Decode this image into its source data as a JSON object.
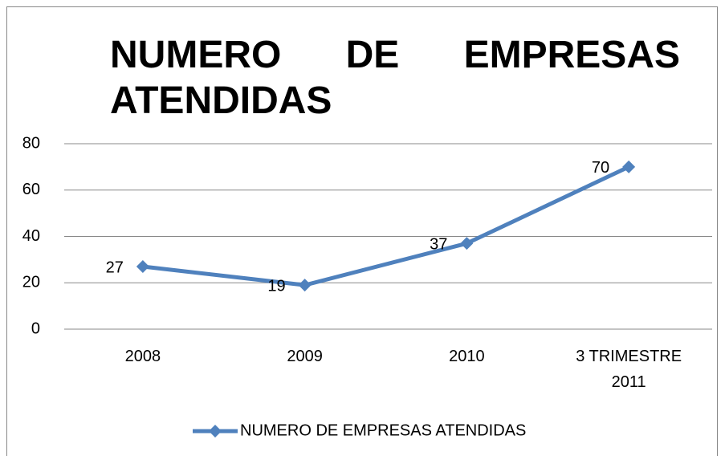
{
  "chart_data": {
    "type": "line",
    "title": "NUMERO DE EMPRESAS ATENDIDAS",
    "categories": [
      "2008",
      "2009",
      "2010",
      "3 TRIMESTRE 2011"
    ],
    "series": [
      {
        "name": "NUMERO DE EMPRESAS ATENDIDAS",
        "color": "#4f81bd",
        "values": [
          27,
          19,
          37,
          70
        ]
      }
    ],
    "ylim": [
      0,
      80
    ],
    "yticks": [
      0,
      20,
      40,
      60,
      80
    ],
    "grid": true,
    "legend": "bottom"
  }
}
